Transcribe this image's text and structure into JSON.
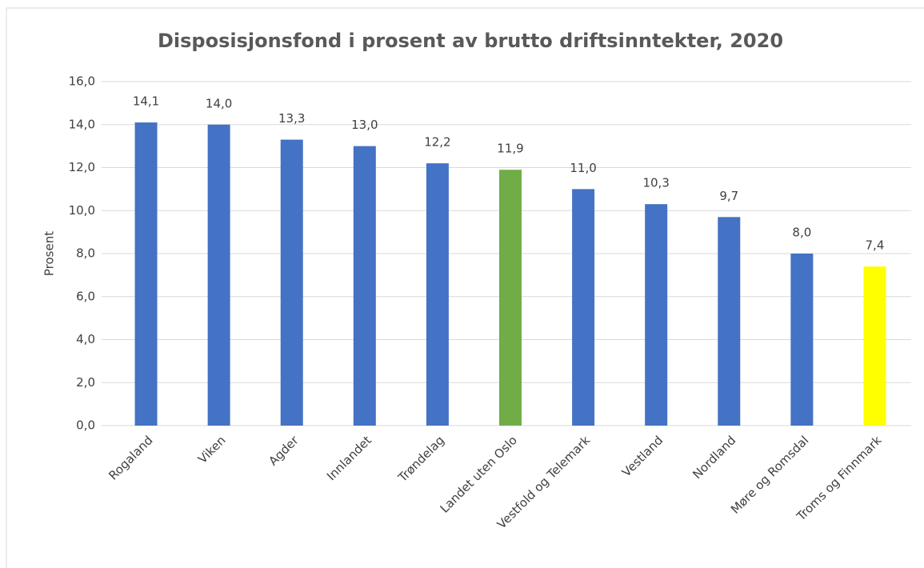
{
  "chart_data": {
    "type": "bar",
    "title": "Disposisjonsfond i prosent av brutto driftsinntekter, 2020",
    "y_label": "Prosent",
    "categories": [
      "Rogaland",
      "Viken",
      "Agder",
      "Innlandet",
      "Trøndelag",
      "Landet uten Oslo",
      "Vestfold og Telemark",
      "Vestland",
      "Nordland",
      "Møre og Romsdal",
      "Troms og Finnmark"
    ],
    "values": [
      14.1,
      14.0,
      13.3,
      13.0,
      12.2,
      11.9,
      11.0,
      10.3,
      9.7,
      8.0,
      7.4
    ],
    "value_labels": [
      "14,1",
      "14,0",
      "13,3",
      "13,0",
      "12,2",
      "11,9",
      "11,0",
      "10,3",
      "9,7",
      "8,0",
      "7,4"
    ],
    "colors": [
      "#4472c4",
      "#4472c4",
      "#4472c4",
      "#4472c4",
      "#4472c4",
      "#70ad47",
      "#4472c4",
      "#4472c4",
      "#4472c4",
      "#4472c4",
      "#ffff00"
    ],
    "ylim": [
      0,
      16
    ],
    "yticks": [
      {
        "value": 0,
        "label": "0,0"
      },
      {
        "value": 2,
        "label": "2,0"
      },
      {
        "value": 4,
        "label": "4,0"
      },
      {
        "value": 6,
        "label": "6,0"
      },
      {
        "value": 8,
        "label": "8,0"
      },
      {
        "value": 10,
        "label": "10,0"
      },
      {
        "value": 12,
        "label": "12,0"
      },
      {
        "value": 14,
        "label": "14,0"
      },
      {
        "value": 16,
        "label": "16,0"
      }
    ],
    "grid": true
  }
}
